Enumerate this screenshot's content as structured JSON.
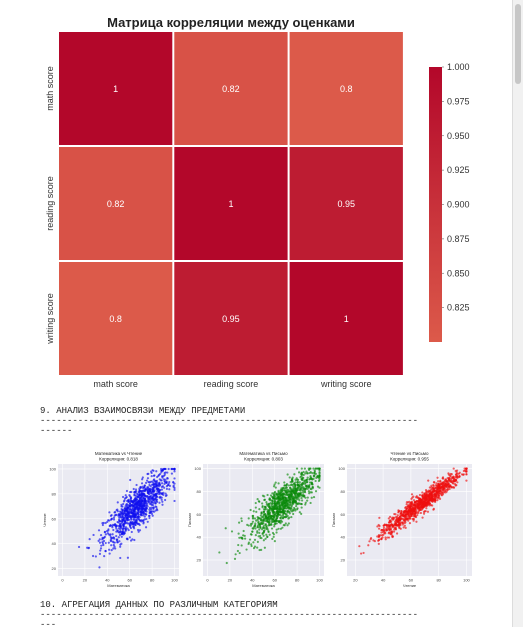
{
  "heatmap": {
    "title": "Матрица корреляции между оценками",
    "labels": [
      "math score",
      "reading score",
      "writing score"
    ],
    "matrix": [
      [
        1,
        0.82,
        0.8
      ],
      [
        0.82,
        1,
        0.95
      ],
      [
        0.8,
        0.95,
        1
      ]
    ],
    "cell_text": [
      [
        "1",
        "0.82",
        "0.8"
      ],
      [
        "0.82",
        "1",
        "0.95"
      ],
      [
        "0.8",
        "0.95",
        "1"
      ]
    ],
    "colorbar_ticks": [
      "1.000",
      "0.975",
      "0.950",
      "0.925",
      "0.900",
      "0.875",
      "0.850",
      "0.825"
    ],
    "colorbar_values": [
      1.0,
      0.975,
      0.95,
      0.925,
      0.9,
      0.875,
      0.85,
      0.825
    ],
    "vmin": 0.8,
    "vmax": 1.0,
    "colors": {
      "low": "#dc5a4a",
      "high": "#b3072a"
    }
  },
  "section9": {
    "heading": "9. АНАЛИЗ ВЗАИМОСВЯЗИ МЕЖДУ ПРЕДМЕТАМИ",
    "rule1": "----------------------------------------------------------------------",
    "rule2": "------"
  },
  "section10": {
    "heading": "10. АГРЕГАЦИЯ ДАННЫХ ПО РАЗЛИЧНЫМ КАТЕГОРИЯМ",
    "rule1": "----------------------------------------------------------------------",
    "rule2": "---"
  },
  "chart_data": [
    {
      "type": "heatmap",
      "title": "Матрица корреляции между оценками",
      "x": [
        "math score",
        "reading score",
        "writing score"
      ],
      "y": [
        "math score",
        "reading score",
        "writing score"
      ],
      "values": [
        [
          1,
          0.82,
          0.8
        ],
        [
          0.82,
          1,
          0.95
        ],
        [
          0.8,
          0.95,
          1
        ]
      ],
      "colorbar_range": [
        0.8,
        1.0
      ]
    },
    {
      "type": "scatter",
      "title": "Математика vs Чтение",
      "subtitle": "Корреляция: 0.818",
      "xlabel": "Математика",
      "ylabel": "Чтение",
      "xticks": [
        0,
        20,
        40,
        60,
        80,
        100
      ],
      "yticks": [
        20,
        40,
        60,
        80,
        100
      ],
      "xlim": [
        -4,
        104
      ],
      "ylim": [
        14,
        104
      ],
      "color": "#1010ee",
      "correlation": 0.818,
      "n_points": 1000
    },
    {
      "type": "scatter",
      "title": "Математика vs Письмо",
      "subtitle": "Корреляция: 0.803",
      "xlabel": "Математика",
      "ylabel": "Письмо",
      "xticks": [
        0,
        20,
        40,
        60,
        80,
        100
      ],
      "yticks": [
        20,
        40,
        60,
        80,
        100
      ],
      "xlim": [
        -4,
        104
      ],
      "ylim": [
        6,
        104
      ],
      "color": "#0a8a0a",
      "correlation": 0.803,
      "n_points": 1000
    },
    {
      "type": "scatter",
      "title": "Чтение vs Письмо",
      "subtitle": "Корреляция: 0.955",
      "xlabel": "Чтение",
      "ylabel": "Письмо",
      "xticks": [
        20,
        40,
        60,
        80,
        100
      ],
      "yticks": [
        20,
        40,
        60,
        80,
        100
      ],
      "xlim": [
        14,
        104
      ],
      "ylim": [
        6,
        104
      ],
      "color": "#ee1010",
      "correlation": 0.955,
      "n_points": 1000
    }
  ]
}
